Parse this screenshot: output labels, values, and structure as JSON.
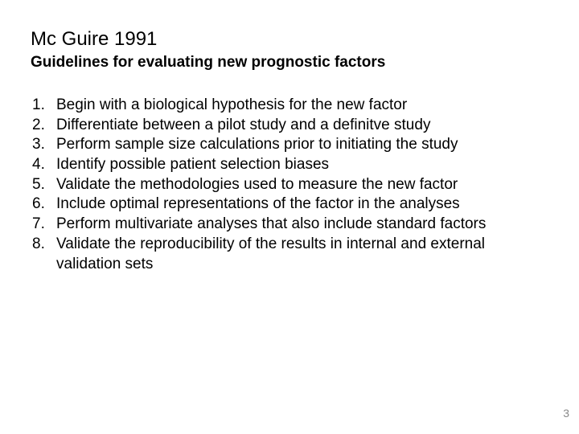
{
  "title": "Mc Guire 1991",
  "subtitle": "Guidelines for evaluating new prognostic factors",
  "items": [
    {
      "n": "1.",
      "text": "Begin with a biological hypothesis for the new factor"
    },
    {
      "n": "2.",
      "text": "Differentiate between a pilot study and a definitve study"
    },
    {
      "n": "3.",
      "text": "Perform sample size calculations prior to initiating the study"
    },
    {
      "n": "4.",
      "text": "Identify possible patient selection biases"
    },
    {
      "n": "5.",
      "text": "Validate the methodologies used to measure the new factor"
    },
    {
      "n": "6.",
      "text": "Include optimal representations of the factor in the analyses"
    },
    {
      "n": "7.",
      "text": "Perform multivariate analyses that also include standard factors"
    },
    {
      "n": "8.",
      "text": "Validate the reproducibility of the results in internal and external validation sets"
    }
  ],
  "page_number": "3",
  "colors": {
    "background": "#ffffff",
    "text": "#000000",
    "page_num": "#888888"
  },
  "typography": {
    "title_fontsize": 24,
    "subtitle_fontsize": 19,
    "body_fontsize": 19,
    "pagenum_fontsize": 14,
    "font_family": "Arial"
  }
}
